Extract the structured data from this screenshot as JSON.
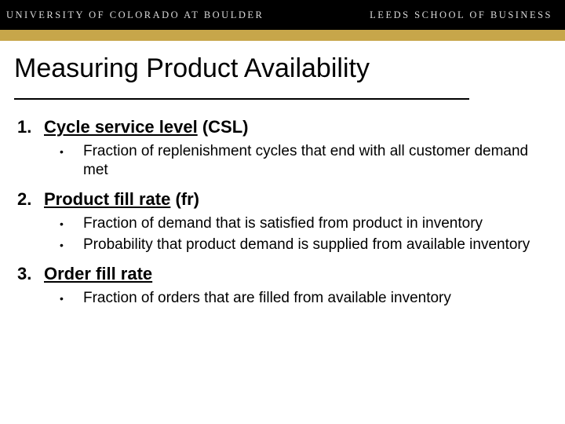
{
  "header": {
    "left_text": "UNIVERSITY OF COLORADO AT BOULDER",
    "right_text": "LEEDS SCHOOL OF BUSINESS",
    "bar_color": "#000000",
    "text_color": "#d9d9d9",
    "gold_bar_color": "#c7a64a"
  },
  "title": "Measuring Product Availability",
  "items": [
    {
      "number": "1.",
      "term_underlined": "Cycle service level",
      "term_paren": " (CSL)",
      "bullets": [
        "Fraction of replenishment cycles that end with all customer demand met"
      ]
    },
    {
      "number": "2.",
      "term_underlined": "Product fill rate",
      "term_paren": " (fr)",
      "bullets": [
        "Fraction of demand that is satisfied from product in inventory",
        "Probability that product demand is supplied from available inventory"
      ]
    },
    {
      "number": "3.",
      "term_underlined": "Order fill rate",
      "term_paren": "",
      "bullets": [
        "Fraction of orders that are filled from available inventory"
      ]
    }
  ]
}
